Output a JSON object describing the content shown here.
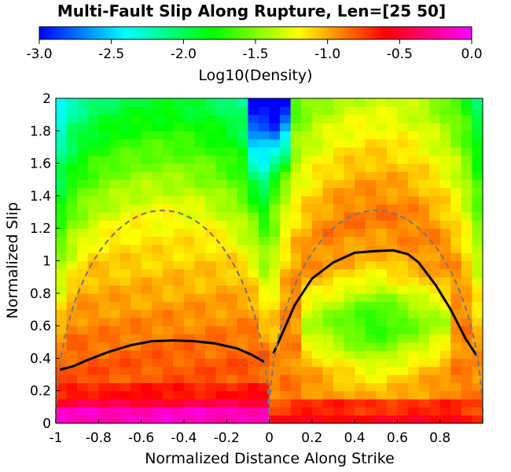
{
  "chart_data": {
    "type": "heatmap",
    "title": "Multi-Fault Slip Along Rupture, Len=[25 50]",
    "xlabel": "Normalized Distance Along Strike",
    "ylabel": "Normalized Slip",
    "xlim": [
      -1,
      1
    ],
    "ylim": [
      0,
      2
    ],
    "x_ticks": [
      "-1",
      "-0.8",
      "-0.6",
      "-0.4",
      "-0.2",
      "0",
      "0.2",
      "0.4",
      "0.6",
      "0.8"
    ],
    "x_tick_values": [
      -1,
      -0.8,
      -0.6,
      -0.4,
      -0.2,
      0,
      0.2,
      0.4,
      0.6,
      0.8
    ],
    "y_ticks": [
      "0",
      "0.2",
      "0.4",
      "0.6",
      "0.8",
      "1",
      "1.2",
      "1.4",
      "1.6",
      "1.8",
      "2"
    ],
    "y_tick_values": [
      0,
      0.2,
      0.4,
      0.6,
      0.8,
      1,
      1.2,
      1.4,
      1.6,
      1.8,
      2
    ],
    "colorbar": {
      "label": "Log10(Density)",
      "range": [
        -3,
        0
      ],
      "ticks": [
        "-3.0",
        "-2.5",
        "-2.0",
        "-1.5",
        "-1.0",
        "-0.5",
        "0.0"
      ],
      "tick_values": [
        -3,
        -2.5,
        -2,
        -1.5,
        -1,
        -0.5,
        0
      ],
      "colors": [
        "#0000ff",
        "#00ffff",
        "#00ff00",
        "#ffff00",
        "#ff0000",
        "#ff00ff"
      ]
    },
    "grid": {
      "nx": 40,
      "ny": 40
    },
    "series": [
      {
        "style": "solid",
        "color": "#000000",
        "points": [
          [
            -0.98,
            0.33
          ],
          [
            -0.92,
            0.35
          ],
          [
            -0.85,
            0.39
          ],
          [
            -0.75,
            0.44
          ],
          [
            -0.65,
            0.48
          ],
          [
            -0.55,
            0.505
          ],
          [
            -0.45,
            0.51
          ],
          [
            -0.35,
            0.505
          ],
          [
            -0.25,
            0.49
          ],
          [
            -0.15,
            0.46
          ],
          [
            -0.08,
            0.42
          ],
          [
            -0.02,
            0.375
          ]
        ]
      },
      {
        "style": "solid",
        "color": "#000000",
        "points": [
          [
            0.02,
            0.43
          ],
          [
            0.06,
            0.55
          ],
          [
            0.12,
            0.73
          ],
          [
            0.2,
            0.89
          ],
          [
            0.3,
            0.99
          ],
          [
            0.4,
            1.05
          ],
          [
            0.5,
            1.06
          ],
          [
            0.58,
            1.065
          ],
          [
            0.65,
            1.04
          ],
          [
            0.7,
            0.99
          ],
          [
            0.78,
            0.85
          ],
          [
            0.85,
            0.7
          ],
          [
            0.92,
            0.52
          ],
          [
            0.97,
            0.42
          ]
        ]
      },
      {
        "style": "dashed",
        "color": "#7a7a7a",
        "shape": "semi-ellipse",
        "centers": [
          -0.5,
          0.5
        ],
        "half_width": 0.5,
        "peak": 1.31
      }
    ]
  }
}
